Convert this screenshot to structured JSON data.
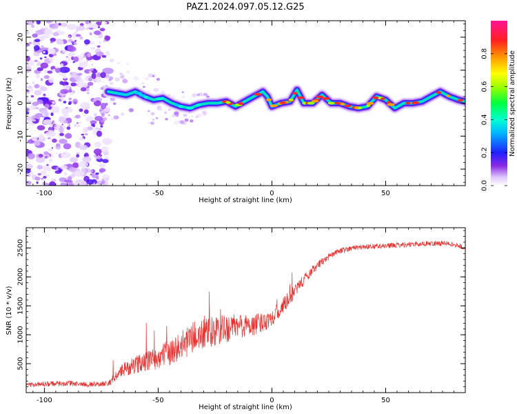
{
  "figure_title": "PAZ1.2024.097.05.12.G25",
  "chart_data": [
    {
      "type": "heatmap",
      "title": "PAZ1.2024.097.05.12.G25",
      "xlabel": "Height of straight line (km)",
      "ylabel": "Frequency (Hz)",
      "xlim": [
        -108,
        85
      ],
      "ylim": [
        -25,
        25
      ],
      "x_ticks": [
        -100,
        -50,
        0,
        50
      ],
      "y_ticks": [
        -20,
        -10,
        0,
        10,
        20
      ],
      "grid": false,
      "ridge_line": {
        "x": [
          -72,
          -68,
          -64,
          -60,
          -56,
          -52,
          -48,
          -44,
          -40,
          -36,
          -32,
          -28,
          -24,
          -20,
          -16,
          -12,
          -8,
          -4,
          -2,
          0,
          4,
          8,
          11,
          14,
          18,
          22,
          26,
          30,
          34,
          38,
          42,
          46,
          50,
          54,
          58,
          62,
          66,
          70,
          74,
          78,
          82,
          85
        ],
        "y": [
          3.5,
          3,
          2.5,
          3.5,
          2,
          1,
          1.5,
          0,
          -1,
          -1.5,
          -0.5,
          0,
          0,
          0.5,
          -1,
          0.5,
          2,
          3.5,
          2,
          -1,
          0,
          0.5,
          4,
          0,
          0,
          2.5,
          0,
          0,
          -1,
          -1.5,
          -1,
          2,
          1,
          -1.5,
          0,
          0,
          0.5,
          2,
          3.5,
          2,
          1,
          0.5
        ]
      },
      "colorbar": {
        "label": "Normalized spectral amplitude",
        "range": [
          0,
          1
        ],
        "ticks": [
          0.0,
          0.2,
          0.4,
          0.6,
          0.8
        ],
        "tick_labels": [
          "0.0",
          "0.2",
          "0.4",
          "0.6",
          "0.8"
        ]
      }
    },
    {
      "type": "line",
      "xlabel": "Height of straight line (km)",
      "ylabel": "SNR (10 * v/v)",
      "xlim": [
        -108,
        85
      ],
      "ylim": [
        0,
        2850
      ],
      "x_ticks": [
        -100,
        -50,
        0,
        50
      ],
      "y_ticks": [
        500,
        1000,
        1500,
        2000,
        2500
      ],
      "grid": false,
      "series": [
        {
          "color": "#e8302e",
          "x": [
            -108,
            -100,
            -90,
            -80,
            -72,
            -65,
            -60,
            -55,
            -50,
            -45,
            -40,
            -35,
            -30,
            -25,
            -20,
            -15,
            -10,
            -5,
            0,
            5,
            10,
            15,
            20,
            25,
            30,
            35,
            40,
            45,
            50,
            55,
            60,
            65,
            70,
            75,
            80,
            85
          ],
          "y": [
            130,
            150,
            160,
            140,
            160,
            400,
            480,
            550,
            600,
            700,
            800,
            950,
            1000,
            1050,
            1100,
            1150,
            1150,
            1200,
            1300,
            1500,
            1750,
            2000,
            2200,
            2350,
            2450,
            2500,
            2520,
            2530,
            2540,
            2550,
            2560,
            2570,
            2580,
            2580,
            2560,
            2500
          ],
          "spread": [
            80,
            90,
            100,
            90,
            100,
            250,
            300,
            350,
            400,
            450,
            500,
            550,
            550,
            550,
            500,
            450,
            400,
            350,
            300,
            280,
            250,
            200,
            150,
            120,
            100,
            90,
            90,
            90,
            90,
            90,
            90,
            90,
            90,
            90,
            90,
            90
          ]
        }
      ]
    }
  ]
}
